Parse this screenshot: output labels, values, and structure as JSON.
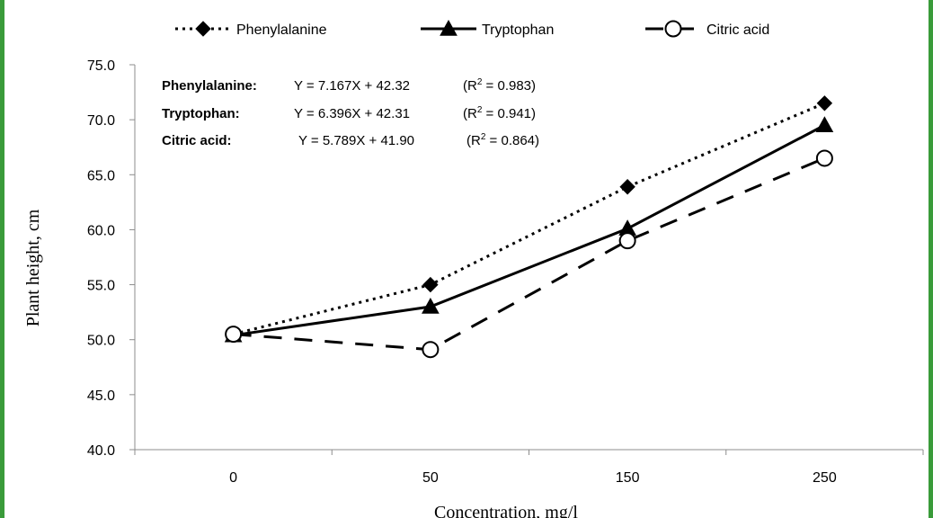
{
  "colors": {
    "frame": "#3a9b3a",
    "line": "#000000",
    "axis": "#8c8c8c",
    "background": "#ffffff"
  },
  "chart_data": {
    "type": "line",
    "categories": [
      "0",
      "50",
      "150",
      "250"
    ],
    "xlabel": "Concentration, mg/l",
    "ylabel": "Plant height, cm",
    "ylim": [
      40,
      75
    ],
    "yticks": [
      "40.0",
      "45.0",
      "50.0",
      "55.0",
      "60.0",
      "65.0",
      "70.0",
      "75.0"
    ],
    "grid": false,
    "legend_position": "top",
    "series": [
      {
        "name": "Phenylalanine",
        "values": [
          50.5,
          55.0,
          63.9,
          71.5
        ],
        "line_style": "dotted",
        "marker": "diamond-filled"
      },
      {
        "name": "Tryptophan",
        "values": [
          50.4,
          53.0,
          60.1,
          69.5
        ],
        "line_style": "solid",
        "marker": "triangle-filled"
      },
      {
        "name": "Citric acid",
        "values": [
          50.5,
          49.1,
          59.0,
          66.5
        ],
        "line_style": "dashed",
        "marker": "circle-open"
      }
    ],
    "annotations": [
      {
        "label": "Phenylalanine:",
        "equation": "Y = 7.167X + 42.32",
        "r2_prefix": "(R",
        "r2_sup": "2",
        "r2_value": " = 0.983)"
      },
      {
        "label": "Tryptophan:",
        "equation": "Y = 6.396X + 42.31",
        "r2_prefix": "(R",
        "r2_sup": "2",
        "r2_value": " = 0.941)"
      },
      {
        "label": "Citric acid:",
        "equation": "Y = 5.789X + 41.90",
        "r2_prefix": "(R",
        "r2_sup": "2",
        "r2_value": " = 0.864)"
      }
    ]
  }
}
